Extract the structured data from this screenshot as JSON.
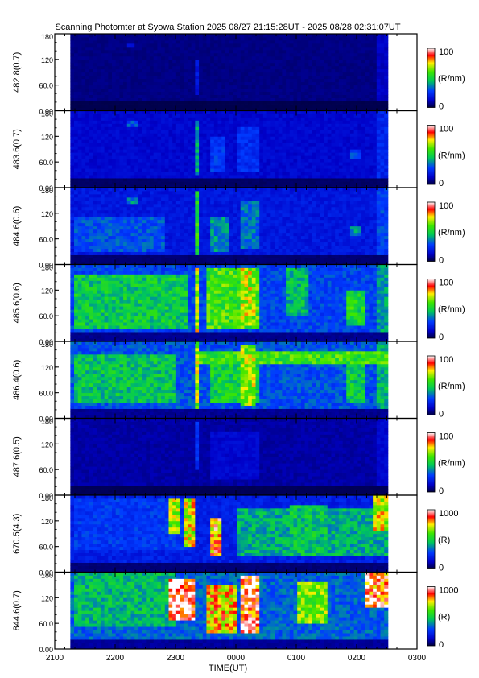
{
  "chart_data": {
    "type": "heatmap",
    "title": "Scanning Photomter at Syowa Station  2025 08/27 21:15:28UT - 2025 08/28 02:31:07UT",
    "xlabel": "TIME(UT)",
    "x_ticks": [
      "2100",
      "2200",
      "2300",
      "0000",
      "0100",
      "0200",
      "0300"
    ],
    "xlim_hours": [
      21,
      27
    ],
    "data_coverage_hours": [
      21.258,
      26.519
    ],
    "y_ticks": [
      "0.00",
      "60.0",
      "120",
      "180"
    ],
    "ylim": [
      0,
      180
    ],
    "panels": [
      {
        "ylabel": "482.8(0.7)",
        "cbar_label": "(R/nm)",
        "cbar_min": "0",
        "cbar_max": "100",
        "vmax": 100,
        "background": 6,
        "features": [
          {
            "x0": 22.2,
            "x1": 22.35,
            "y0": 150,
            "y1": 160,
            "v": 14
          },
          {
            "x0": 23.3,
            "x1": 23.37,
            "y0": 40,
            "y1": 120,
            "v": 18
          },
          {
            "x0": 26.3,
            "x1": 26.5,
            "y0": 20,
            "y1": 180,
            "v": 12
          }
        ]
      },
      {
        "ylabel": "483.6(0.7)",
        "cbar_label": "(R/nm)",
        "cbar_min": "0",
        "cbar_max": "100",
        "vmax": 100,
        "background": 14,
        "features": [
          {
            "x0": 22.2,
            "x1": 22.4,
            "y0": 145,
            "y1": 160,
            "v": 30
          },
          {
            "x0": 23.3,
            "x1": 23.38,
            "y0": 30,
            "y1": 160,
            "v": 40
          },
          {
            "x0": 23.6,
            "x1": 23.8,
            "y0": 40,
            "y1": 120,
            "v": 26
          },
          {
            "x0": 24.0,
            "x1": 24.4,
            "y0": 40,
            "y1": 140,
            "v": 24
          },
          {
            "x0": 25.9,
            "x1": 26.1,
            "y0": 70,
            "y1": 90,
            "v": 28
          },
          {
            "x0": 26.3,
            "x1": 26.5,
            "y0": 20,
            "y1": 180,
            "v": 22
          }
        ]
      },
      {
        "ylabel": "484.6(0.6)",
        "cbar_label": "(R/nm)",
        "cbar_min": "0",
        "cbar_max": "100",
        "vmax": 100,
        "background": 18,
        "features": [
          {
            "x0": 21.3,
            "x1": 22.8,
            "y0": 30,
            "y1": 110,
            "v": 30
          },
          {
            "x0": 22.2,
            "x1": 22.4,
            "y0": 145,
            "y1": 160,
            "v": 36
          },
          {
            "x0": 23.3,
            "x1": 23.38,
            "y0": 20,
            "y1": 170,
            "v": 52
          },
          {
            "x0": 23.6,
            "x1": 23.9,
            "y0": 30,
            "y1": 110,
            "v": 38
          },
          {
            "x0": 24.1,
            "x1": 24.4,
            "y0": 40,
            "y1": 150,
            "v": 34
          },
          {
            "x0": 25.9,
            "x1": 26.1,
            "y0": 70,
            "y1": 90,
            "v": 38
          },
          {
            "x0": 26.3,
            "x1": 26.5,
            "y0": 20,
            "y1": 180,
            "v": 28
          }
        ]
      },
      {
        "ylabel": "485.6(0.6)",
        "cbar_label": "(R/nm)",
        "cbar_min": "0",
        "cbar_max": "100",
        "vmax": 100,
        "background": 28,
        "features": [
          {
            "x0": 21.3,
            "x1": 23.2,
            "y0": 30,
            "y1": 160,
            "v": 48
          },
          {
            "x0": 23.3,
            "x1": 23.38,
            "y0": 20,
            "y1": 175,
            "v": 70
          },
          {
            "x0": 23.5,
            "x1": 24.4,
            "y0": 30,
            "y1": 170,
            "v": 58
          },
          {
            "x0": 24.1,
            "x1": 24.35,
            "y0": 40,
            "y1": 175,
            "v": 68
          },
          {
            "x0": 24.8,
            "x1": 25.2,
            "y0": 60,
            "y1": 170,
            "v": 44
          },
          {
            "x0": 25.85,
            "x1": 26.15,
            "y0": 40,
            "y1": 120,
            "v": 52
          },
          {
            "x0": 26.3,
            "x1": 26.5,
            "y0": 20,
            "y1": 180,
            "v": 40
          }
        ]
      },
      {
        "ylabel": "486.4(0.6)",
        "cbar_label": "(R/nm)",
        "cbar_min": "0",
        "cbar_max": "100",
        "vmax": 100,
        "background": 30,
        "features": [
          {
            "x0": 21.3,
            "x1": 23.0,
            "y0": 40,
            "y1": 150,
            "v": 46
          },
          {
            "x0": 23.3,
            "x1": 23.38,
            "y0": 20,
            "y1": 180,
            "v": 66
          },
          {
            "x0": 23.4,
            "x1": 26.5,
            "y0": 125,
            "y1": 160,
            "v": 56
          },
          {
            "x0": 23.6,
            "x1": 24.4,
            "y0": 40,
            "y1": 155,
            "v": 50
          },
          {
            "x0": 24.1,
            "x1": 24.35,
            "y0": 30,
            "y1": 175,
            "v": 66
          },
          {
            "x0": 25.85,
            "x1": 26.15,
            "y0": 40,
            "y1": 130,
            "v": 48
          },
          {
            "x0": 26.3,
            "x1": 26.5,
            "y0": 20,
            "y1": 180,
            "v": 44
          }
        ]
      },
      {
        "ylabel": "487.6(0.5)",
        "cbar_label": "(R/nm)",
        "cbar_min": "0",
        "cbar_max": "100",
        "vmax": 100,
        "background": 9,
        "features": [
          {
            "x0": 23.3,
            "x1": 23.36,
            "y0": 60,
            "y1": 170,
            "v": 24
          },
          {
            "x0": 23.6,
            "x1": 24.4,
            "y0": 40,
            "y1": 150,
            "v": 14
          },
          {
            "x0": 26.3,
            "x1": 26.5,
            "y0": 20,
            "y1": 180,
            "v": 14
          }
        ]
      },
      {
        "ylabel": "670.5(4.3)",
        "cbar_label": "(R)",
        "cbar_min": "0",
        "cbar_max": "1000",
        "vmax": 1000,
        "background": 200,
        "features": [
          {
            "x0": 21.3,
            "x1": 23.2,
            "y0": 50,
            "y1": 175,
            "v": 260
          },
          {
            "x0": 22.9,
            "x1": 23.1,
            "y0": 90,
            "y1": 175,
            "v": 660
          },
          {
            "x0": 23.15,
            "x1": 23.35,
            "y0": 60,
            "y1": 170,
            "v": 720
          },
          {
            "x0": 23.55,
            "x1": 23.75,
            "y0": 40,
            "y1": 130,
            "v": 820
          },
          {
            "x0": 24.0,
            "x1": 26.5,
            "y0": 35,
            "y1": 150,
            "v": 420
          },
          {
            "x0": 24.9,
            "x1": 25.5,
            "y0": 40,
            "y1": 160,
            "v": 460
          },
          {
            "x0": 26.25,
            "x1": 26.5,
            "y0": 100,
            "y1": 180,
            "v": 700
          }
        ]
      },
      {
        "ylabel": "844.6(0.7)",
        "cbar_label": "(R)",
        "cbar_min": "0",
        "cbar_max": "1000",
        "vmax": 1000,
        "background": 320,
        "features": [
          {
            "x0": 21.3,
            "x1": 23.0,
            "y0": 50,
            "y1": 178,
            "v": 440
          },
          {
            "x0": 22.9,
            "x1": 23.35,
            "y0": 70,
            "y1": 165,
            "v": 980
          },
          {
            "x0": 23.5,
            "x1": 24.0,
            "y0": 40,
            "y1": 150,
            "v": 760
          },
          {
            "x0": 24.05,
            "x1": 24.4,
            "y0": 40,
            "y1": 175,
            "v": 920
          },
          {
            "x0": 25.0,
            "x1": 25.5,
            "y0": 60,
            "y1": 160,
            "v": 640
          },
          {
            "x0": 26.15,
            "x1": 26.5,
            "y0": 100,
            "y1": 180,
            "v": 880
          }
        ]
      }
    ]
  }
}
